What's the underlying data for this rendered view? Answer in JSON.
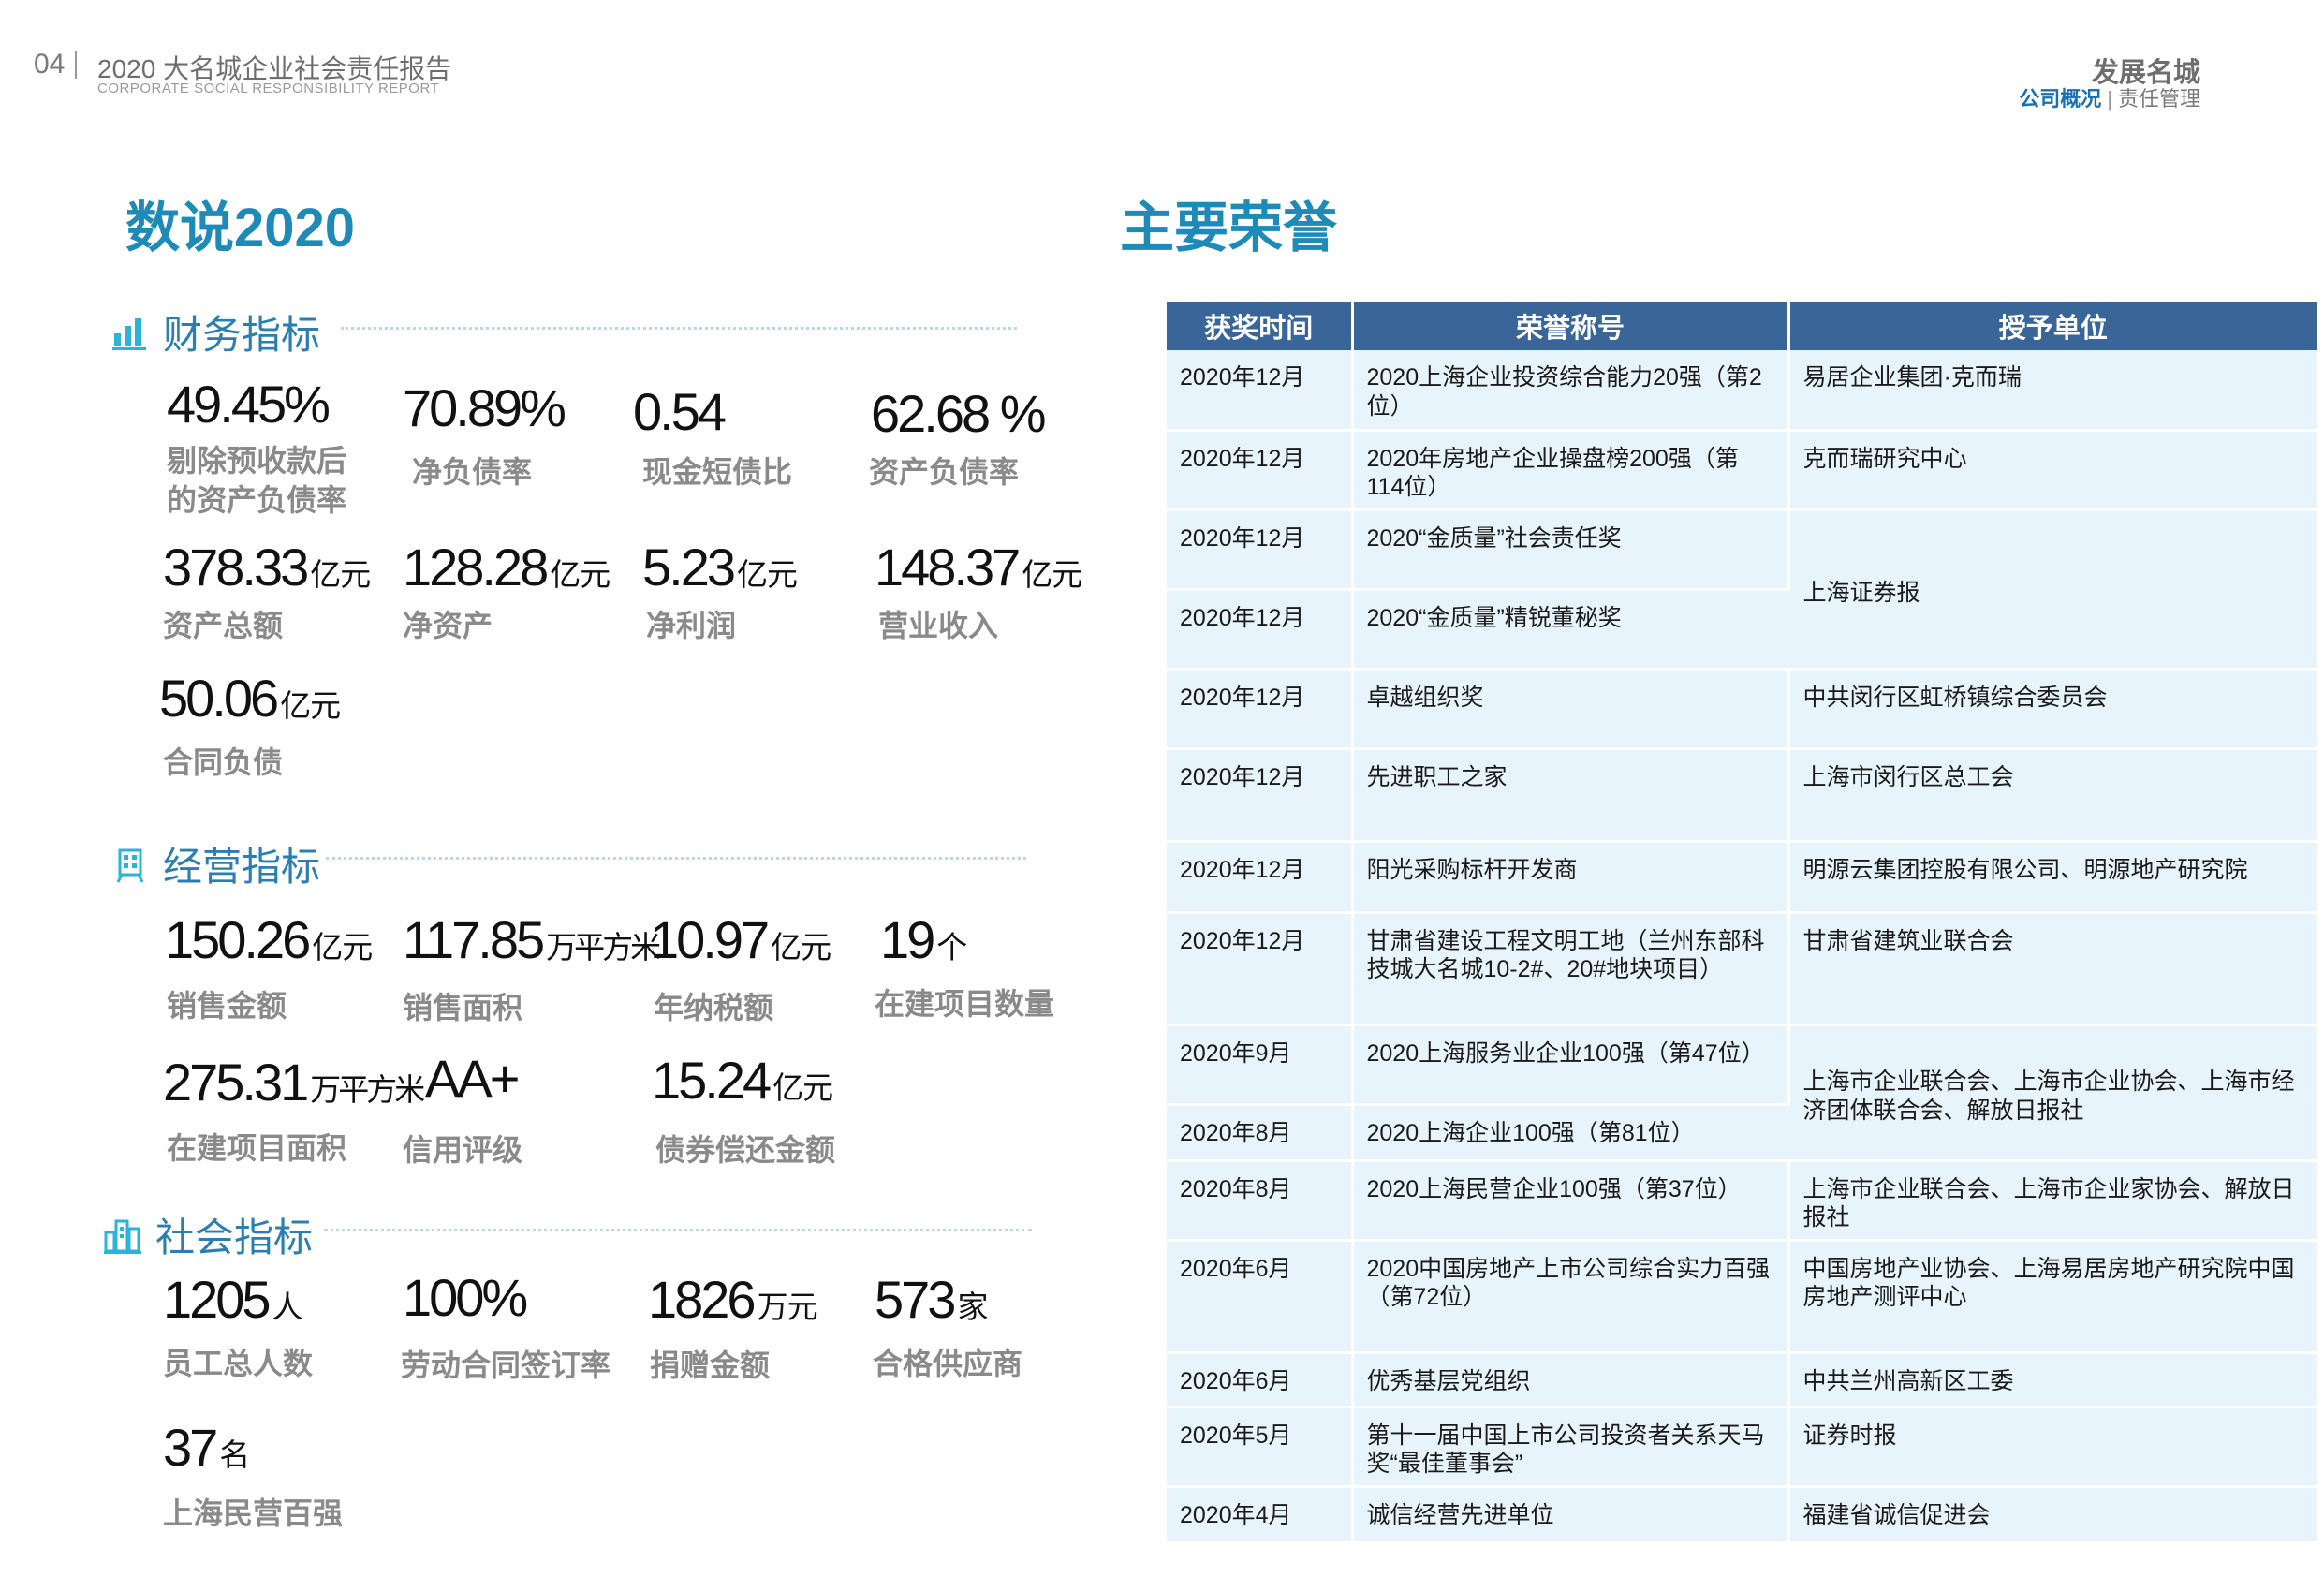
{
  "header": {
    "page_number": "04",
    "report_title": "2020 大名城企业社会责任报告",
    "report_subtitle": "CORPORATE SOCIAL RESPONSIBILITY REPORT",
    "section_title": "发展名城",
    "nav_active": "公司概况",
    "nav_separator": "|",
    "nav_inactive": "责任管理"
  },
  "left": {
    "title": "数说2020",
    "finance": {
      "label": "财务指标",
      "metrics": [
        {
          "value": "49.45%",
          "unit": "",
          "label": "剔除预收款后\n的资产负债率"
        },
        {
          "value": "70.89%",
          "unit": "",
          "label": "净负债率"
        },
        {
          "value": "0.54",
          "unit": "",
          "label": "现金短债比"
        },
        {
          "value": "62.68 %",
          "unit": "",
          "label": "资产负债率"
        },
        {
          "value": "378.33",
          "unit": "亿元",
          "label": "资产总额"
        },
        {
          "value": "128.28",
          "unit": "亿元",
          "label": "净资产"
        },
        {
          "value": "5.23",
          "unit": "亿元",
          "label": "净利润"
        },
        {
          "value": "148.37",
          "unit": "亿元",
          "label": "营业收入"
        },
        {
          "value": "50.06",
          "unit": "亿元",
          "label": "合同负债"
        }
      ]
    },
    "operation": {
      "label": "经营指标",
      "metrics": [
        {
          "value": "150.26",
          "unit": "亿元",
          "label": "销售金额"
        },
        {
          "value": "117.85",
          "unit": "万平方米",
          "label": "销售面积"
        },
        {
          "value": "10.97",
          "unit": "亿元",
          "label": "年纳税额"
        },
        {
          "value": "19",
          "unit": "个",
          "label": "在建项目数量"
        },
        {
          "value": "275.31",
          "unit": "万平方米",
          "label": "在建项目面积"
        },
        {
          "value": "AA+",
          "unit": "",
          "label": "信用评级"
        },
        {
          "value": "15.24",
          "unit": "亿元",
          "label": "债券偿还金额"
        }
      ]
    },
    "social": {
      "label": "社会指标",
      "metrics": [
        {
          "value": "1205",
          "unit": "人",
          "label": "员工总人数"
        },
        {
          "value": "100%",
          "unit": "",
          "label": "劳动合同签订率"
        },
        {
          "value": "1826",
          "unit": "万元",
          "label": "捐赠金额"
        },
        {
          "value": "573",
          "unit": "家",
          "label": "合格供应商"
        },
        {
          "value": "37",
          "unit": "名",
          "label": "上海民营百强"
        }
      ]
    }
  },
  "right": {
    "title": "主要荣誉",
    "table": {
      "headers": [
        "获奖时间",
        "荣誉称号",
        "授予单位"
      ],
      "rows": [
        {
          "date": "2020年12月",
          "honor": "2020上海企业投资综合能力20强（第2位）",
          "org": "易居企业集团·克而瑞"
        },
        {
          "date": "2020年12月",
          "honor": "2020年房地产企业操盘榜200强（第114位）",
          "org": "克而瑞研究中心"
        },
        {
          "date": "2020年12月",
          "honor": "2020“金质量”社会责任奖",
          "org": "上海证券报"
        },
        {
          "date": "2020年12月",
          "honor": "2020“金质量”精锐董秘奖",
          "org": ""
        },
        {
          "date": "2020年12月",
          "honor": "卓越组织奖",
          "org": "中共闵行区虹桥镇综合委员会"
        },
        {
          "date": "2020年12月",
          "honor": "先进职工之家",
          "org": "上海市闵行区总工会"
        },
        {
          "date": "2020年12月",
          "honor": "阳光采购标杆开发商",
          "org": "明源云集团控股有限公司、明源地产研究院"
        },
        {
          "date": "2020年12月",
          "honor": "甘肃省建设工程文明工地（兰州东部科技城大名城10-2#、20#地块项目）",
          "org": "甘肃省建筑业联合会"
        },
        {
          "date": "2020年9月",
          "honor": "2020上海服务业企业100强（第47位）",
          "org": "上海市企业联合会、上海市企业协会、上海市经济团体联合会、解放日报社"
        },
        {
          "date": "2020年8月",
          "honor": "2020上海企业100强（第81位）",
          "org": ""
        },
        {
          "date": "2020年8月",
          "honor": "2020上海民营企业100强（第37位）",
          "org": "上海市企业联合会、上海市企业家协会、解放日报社"
        },
        {
          "date": "2020年6月",
          "honor": "2020中国房地产上市公司综合实力百强（第72位）",
          "org": "中国房地产业协会、上海易居房地产研究院中国房地产测评中心"
        },
        {
          "date": "2020年6月",
          "honor": "优秀基层党组织",
          "org": "中共兰州高新区工委"
        },
        {
          "date": "2020年5月",
          "honor": "第十一届中国上市公司投资者关系天马奖“最佳董事会”",
          "org": "证券时报"
        },
        {
          "date": "2020年4月",
          "honor": "诚信经营先进单位",
          "org": "福建省诚信促进会"
        }
      ]
    }
  },
  "colors": {
    "title_blue": "#1e8ab8",
    "section_blue": "#2a7fb0",
    "nav_blue": "#1b6fb5",
    "table_header": "#3a6598",
    "table_cell": "#e8f4fb",
    "icon_cyan": "#2ab4d8"
  },
  "icons": [
    "bar-chart-icon",
    "building-icon",
    "city-icon"
  ]
}
